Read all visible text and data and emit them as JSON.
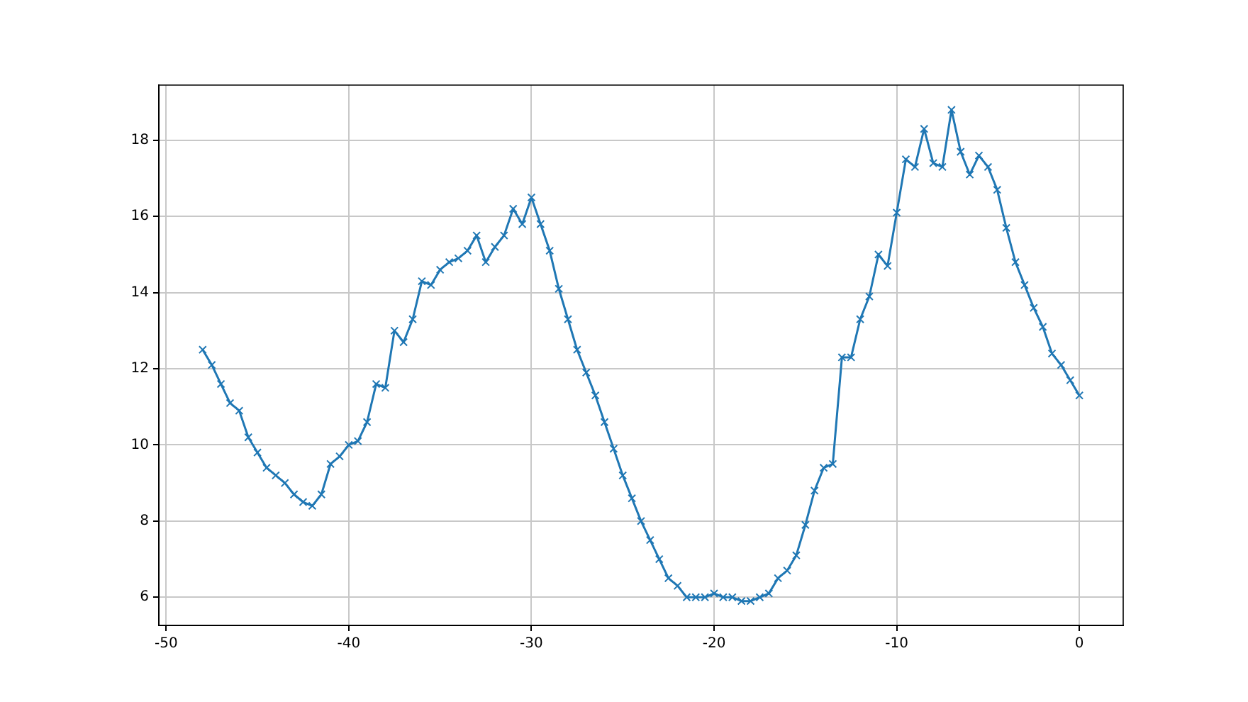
{
  "chart_data": {
    "type": "line",
    "x": [
      -48,
      -47.5,
      -47,
      -46.5,
      -46,
      -45.5,
      -45,
      -44.5,
      -44,
      -43.5,
      -43,
      -42.5,
      -42,
      -41.5,
      -41,
      -40.5,
      -40,
      -39.5,
      -39,
      -38.5,
      -38,
      -37.5,
      -37,
      -36.5,
      -36,
      -35.5,
      -35,
      -34.5,
      -34,
      -33.5,
      -33,
      -32.5,
      -32,
      -31.5,
      -31,
      -30.5,
      -30,
      -29.5,
      -29,
      -28.5,
      -28,
      -27.5,
      -27,
      -26.5,
      -26,
      -25.5,
      -25,
      -24.5,
      -24,
      -23.5,
      -23,
      -22.5,
      -22,
      -21.5,
      -21,
      -20.5,
      -20,
      -19.5,
      -19,
      -18.5,
      -18,
      -17.5,
      -17,
      -16.5,
      -16,
      -15.5,
      -15,
      -14.5,
      -14,
      -13.5,
      -13,
      -12.5,
      -12,
      -11.5,
      -11,
      -10.5,
      -10,
      -9.5,
      -9,
      -8.5,
      -8,
      -7.5,
      -7,
      -6.5,
      -6,
      -5.5,
      -5,
      -4.5,
      -4,
      -3.5,
      -3,
      -2.5,
      -2,
      -1.5,
      -1,
      -0.5,
      0
    ],
    "series": [
      {
        "color": "#1f77b4",
        "values": [
          12.5,
          12.1,
          11.6,
          11.1,
          10.9,
          10.2,
          9.8,
          9.4,
          9.2,
          9.0,
          8.7,
          8.5,
          8.4,
          8.7,
          9.5,
          9.7,
          10.0,
          10.1,
          10.6,
          11.6,
          11.5,
          13.0,
          12.7,
          13.3,
          14.3,
          14.2,
          14.6,
          14.8,
          14.9,
          15.1,
          15.5,
          14.8,
          15.2,
          15.5,
          16.2,
          15.8,
          16.5,
          15.8,
          15.1,
          14.1,
          13.3,
          12.5,
          11.9,
          11.3,
          10.6,
          9.9,
          9.2,
          8.6,
          8.0,
          7.5,
          7.0,
          6.5,
          6.3,
          6.0,
          6.0,
          6.0,
          6.1,
          6.0,
          6.0,
          5.9,
          5.9,
          6.0,
          6.1,
          6.5,
          6.7,
          7.1,
          7.9,
          8.8,
          9.4,
          9.5,
          12.3,
          12.3,
          13.3,
          13.9,
          15.0,
          14.7,
          16.1,
          17.5,
          17.3,
          18.3,
          17.4,
          17.3,
          18.8,
          17.7,
          17.1,
          17.6,
          17.3,
          16.7,
          15.7,
          14.8,
          14.2,
          13.6,
          13.1,
          12.4,
          12.1,
          11.7,
          11.3
        ]
      }
    ],
    "xlim": [
      -50.4,
      2.4
    ],
    "xticks": [
      -50,
      -40,
      -30,
      -20,
      -10,
      0
    ],
    "ylim": [
      5.26,
      19.45
    ],
    "yticks": [
      6,
      8,
      10,
      12,
      14,
      16,
      18
    ],
    "grid": true,
    "marker": "cross",
    "line_style": "solid"
  }
}
